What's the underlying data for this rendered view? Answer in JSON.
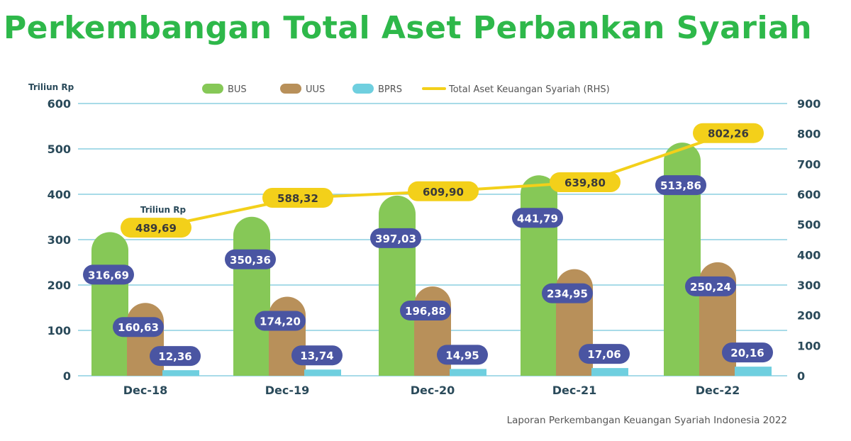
{
  "chart_data": {
    "type": "bar",
    "title": "Perkembangan Total Aset Perbankan Syariah",
    "categories": [
      "Dec-18",
      "Dec-19",
      "Dec-20",
      "Dec-21",
      "Dec-22"
    ],
    "series": [
      {
        "name": "BUS",
        "color": "#86c857",
        "values": [
          316.69,
          350.36,
          397.03,
          441.79,
          513.86
        ],
        "labels": [
          "316,69",
          "350,36",
          "397,03",
          "441,79",
          "513,86"
        ]
      },
      {
        "name": "UUS",
        "color": "#b8905a",
        "values": [
          160.63,
          174.2,
          196.88,
          234.95,
          250.24
        ],
        "labels": [
          "160,63",
          "174,20",
          "196,88",
          "234,95",
          "250,24"
        ]
      },
      {
        "name": "BPRS",
        "color": "#6fcfdf",
        "values": [
          12.36,
          13.74,
          14.95,
          17.06,
          20.16
        ],
        "labels": [
          "12,36",
          "13,74",
          "14,95",
          "17,06",
          "20,16"
        ]
      }
    ],
    "line_series": {
      "name": "Total Aset Keuangan Syariah (RHS)",
      "color": "#f3d01a",
      "axis": "right",
      "values": [
        489.69,
        588.32,
        609.9,
        639.8,
        802.26
      ],
      "labels": [
        "489,69",
        "588,32",
        "609,90",
        "639,80",
        "802,26"
      ]
    },
    "ylabel_left": "Triliun Rp",
    "ylim_left": [
      0,
      600
    ],
    "yticks_left": [
      "0",
      "100",
      "200",
      "300",
      "400",
      "500",
      "600"
    ],
    "ylim_right": [
      0,
      900
    ],
    "yticks_right": [
      "0",
      "100",
      "200",
      "300",
      "400",
      "500",
      "600",
      "700",
      "800",
      "900"
    ],
    "annotation": "Triliun Rp",
    "grid": true,
    "legend_position": "top"
  },
  "source": "Laporan Perkembangan Keuangan Syariah Indonesia 2022",
  "colors": {
    "title": "#2eb84a",
    "axis": "#2a4a5a",
    "grid": "#8ccfe0",
    "label_bg": "#4a55a2",
    "label_text": "#ffffff"
  }
}
